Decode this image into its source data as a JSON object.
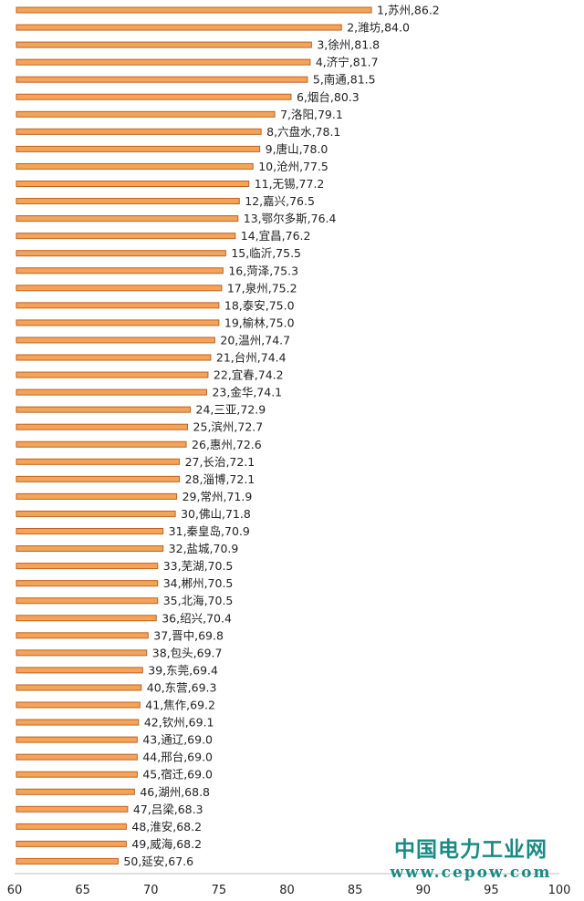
{
  "chart_data": {
    "type": "bar",
    "orientation": "horizontal",
    "xlim": [
      60,
      100
    ],
    "x_ticks": [
      60,
      65,
      70,
      75,
      80,
      85,
      90,
      95,
      100
    ],
    "grid": false,
    "bar_color": "#f3a35a",
    "bar_edge_color": "#c0621e",
    "bars": [
      {
        "label": "1,苏州,86.2",
        "value": 86.2
      },
      {
        "label": "2,潍坊,84.0",
        "value": 84.0
      },
      {
        "label": "3,徐州,81.8",
        "value": 81.8
      },
      {
        "label": "4,济宁,81.7",
        "value": 81.7
      },
      {
        "label": "5,南通,81.5",
        "value": 81.5
      },
      {
        "label": "6,烟台,80.3",
        "value": 80.3
      },
      {
        "label": "7,洛阳,79.1",
        "value": 79.1
      },
      {
        "label": "8,六盘水,78.1",
        "value": 78.1
      },
      {
        "label": "9,唐山,78.0",
        "value": 78.0
      },
      {
        "label": "10,沧州,77.5",
        "value": 77.5
      },
      {
        "label": "11,无锡,77.2",
        "value": 77.2
      },
      {
        "label": "12,嘉兴,76.5",
        "value": 76.5
      },
      {
        "label": "13,鄂尔多斯,76.4",
        "value": 76.4
      },
      {
        "label": "14,宜昌,76.2",
        "value": 76.2
      },
      {
        "label": "15,临沂,75.5",
        "value": 75.5
      },
      {
        "label": "16,菏泽,75.3",
        "value": 75.3
      },
      {
        "label": "17,泉州,75.2",
        "value": 75.2
      },
      {
        "label": "18,泰安,75.0",
        "value": 75.0
      },
      {
        "label": "19,榆林,75.0",
        "value": 75.0
      },
      {
        "label": "20,温州,74.7",
        "value": 74.7
      },
      {
        "label": "21,台州,74.4",
        "value": 74.4
      },
      {
        "label": "22,宜春,74.2",
        "value": 74.2
      },
      {
        "label": "23,金华,74.1",
        "value": 74.1
      },
      {
        "label": "24,三亚,72.9",
        "value": 72.9
      },
      {
        "label": "25,滨州,72.7",
        "value": 72.7
      },
      {
        "label": "26,惠州,72.6",
        "value": 72.6
      },
      {
        "label": "27,长治,72.1",
        "value": 72.1
      },
      {
        "label": "28,淄博,72.1",
        "value": 72.1
      },
      {
        "label": "29,常州,71.9",
        "value": 71.9
      },
      {
        "label": "30,佛山,71.8",
        "value": 71.8
      },
      {
        "label": "31,秦皇岛,70.9",
        "value": 70.9
      },
      {
        "label": "32,盐城,70.9",
        "value": 70.9
      },
      {
        "label": "33,芜湖,70.5",
        "value": 70.5
      },
      {
        "label": "34,郴州,70.5",
        "value": 70.5
      },
      {
        "label": "35,北海,70.5",
        "value": 70.5
      },
      {
        "label": "36,绍兴,70.4",
        "value": 70.4
      },
      {
        "label": "37,晋中,69.8",
        "value": 69.8
      },
      {
        "label": "38,包头,69.7",
        "value": 69.7
      },
      {
        "label": "39,东莞,69.4",
        "value": 69.4
      },
      {
        "label": "40,东营,69.3",
        "value": 69.3
      },
      {
        "label": "41,焦作,69.2",
        "value": 69.2
      },
      {
        "label": "42,钦州,69.1",
        "value": 69.1
      },
      {
        "label": "43,通辽,69.0",
        "value": 69.0
      },
      {
        "label": "44,邢台,69.0",
        "value": 69.0
      },
      {
        "label": "45,宿迁,69.0",
        "value": 69.0
      },
      {
        "label": "46,湖州,68.8",
        "value": 68.8
      },
      {
        "label": "47,吕梁,68.3",
        "value": 68.3
      },
      {
        "label": "48,淮安,68.2",
        "value": 68.2
      },
      {
        "label": "49,威海,68.2",
        "value": 68.2
      },
      {
        "label": "50,延安,67.6",
        "value": 67.6
      }
    ]
  },
  "watermark": {
    "title": "中国电力工业网",
    "url": "www.cepow.com",
    "color": "#1a8a84"
  }
}
